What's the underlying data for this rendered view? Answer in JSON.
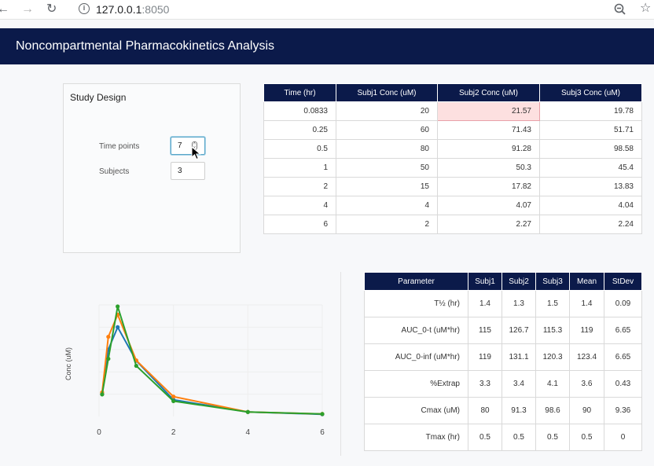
{
  "browser": {
    "back_icon": "back-arrow-icon",
    "forward_icon": "forward-arrow-icon",
    "reload_icon": "reload-icon",
    "info_icon": "info-icon",
    "url_host": "127.0.0.1",
    "url_port": ":8050",
    "zoom_icon": "zoom-out-icon",
    "bookmark_icon": "star-icon"
  },
  "header": {
    "title": "Noncompartmental Pharmacokinetics Analysis"
  },
  "study_design": {
    "title": "Study Design",
    "time_points_label": "Time points",
    "time_points_value": "7",
    "subjects_label": "Subjects",
    "subjects_value": "3"
  },
  "conc_table": {
    "headers": [
      "Time (hr)",
      "Subj1 Conc (uM)",
      "Subj2 Conc (uM)",
      "Subj3 Conc (uM)"
    ],
    "rows": [
      [
        "0.0833",
        "20",
        "21.57",
        "19.78"
      ],
      [
        "0.25",
        "60",
        "71.43",
        "51.71"
      ],
      [
        "0.5",
        "80",
        "91.28",
        "98.58"
      ],
      [
        "1",
        "50",
        "50.3",
        "45.4"
      ],
      [
        "2",
        "15",
        "17.82",
        "13.83"
      ],
      [
        "4",
        "4",
        "4.07",
        "4.04"
      ],
      [
        "6",
        "2",
        "2.27",
        "2.24"
      ]
    ]
  },
  "param_table": {
    "headers": [
      "Parameter",
      "Subj1",
      "Subj2",
      "Subj3",
      "Mean",
      "StDev"
    ],
    "rows": [
      [
        "T½ (hr)",
        "1.4",
        "1.3",
        "1.5",
        "1.4",
        "0.09"
      ],
      [
        "AUC_0-t (uM*hr)",
        "115",
        "126.7",
        "115.3",
        "119",
        "6.65"
      ],
      [
        "AUC_0-inf (uM*hr)",
        "119",
        "131.1",
        "120.3",
        "123.4",
        "6.65"
      ],
      [
        "%Extrap",
        "3.3",
        "3.4",
        "4.1",
        "3.6",
        "0.43"
      ],
      [
        "Cmax (uM)",
        "80",
        "91.3",
        "98.6",
        "90",
        "9.36"
      ],
      [
        "Tmax (hr)",
        "0.5",
        "0.5",
        "0.5",
        "0.5",
        "0"
      ]
    ]
  },
  "chart_data": {
    "type": "line",
    "ylabel": "Conc (uM)",
    "xlabel": "",
    "x_ticks": [
      "0",
      "2",
      "4",
      "6"
    ],
    "xlim": [
      0,
      6
    ],
    "ylim": [
      0,
      100
    ],
    "grid": true,
    "x": [
      0.0833,
      0.25,
      0.5,
      1,
      2,
      4,
      6
    ],
    "series": [
      {
        "color": "#1f77b4",
        "values": [
          20,
          60,
          80,
          50,
          15,
          4,
          2
        ]
      },
      {
        "color": "#ff7f0e",
        "values": [
          21.57,
          71.43,
          91.28,
          50.3,
          17.82,
          4.07,
          2.27
        ]
      },
      {
        "color": "#2ca02c",
        "values": [
          19.78,
          51.71,
          98.58,
          45.4,
          13.83,
          4.04,
          2.24
        ]
      }
    ]
  }
}
